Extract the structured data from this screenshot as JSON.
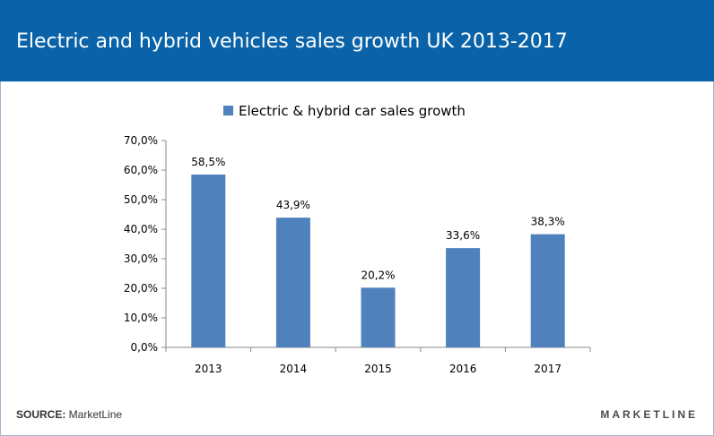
{
  "header": {
    "title": "Electric and hybrid vehicles sales growth UK 2013-2017"
  },
  "chart_data": {
    "type": "bar",
    "categories": [
      "2013",
      "2014",
      "2015",
      "2016",
      "2017"
    ],
    "series": [
      {
        "name": "Electric & hybrid car sales growth",
        "values": [
          58.5,
          43.9,
          20.2,
          33.6,
          38.3
        ],
        "labels": [
          "58,5%",
          "43,9%",
          "20,2%",
          "33,6%",
          "38,3%"
        ]
      }
    ],
    "ylim": [
      0,
      70
    ],
    "yticks": [
      "0,0%",
      "10,0%",
      "20,0%",
      "30,0%",
      "40,0%",
      "50,0%",
      "60,0%",
      "70,0%"
    ],
    "grid": false,
    "legend_position": "top-center",
    "bar_color": "#4f81bd"
  },
  "footer": {
    "source_label": "SOURCE:",
    "source_value": " MarketLine",
    "brand": "MARKETLINE"
  }
}
